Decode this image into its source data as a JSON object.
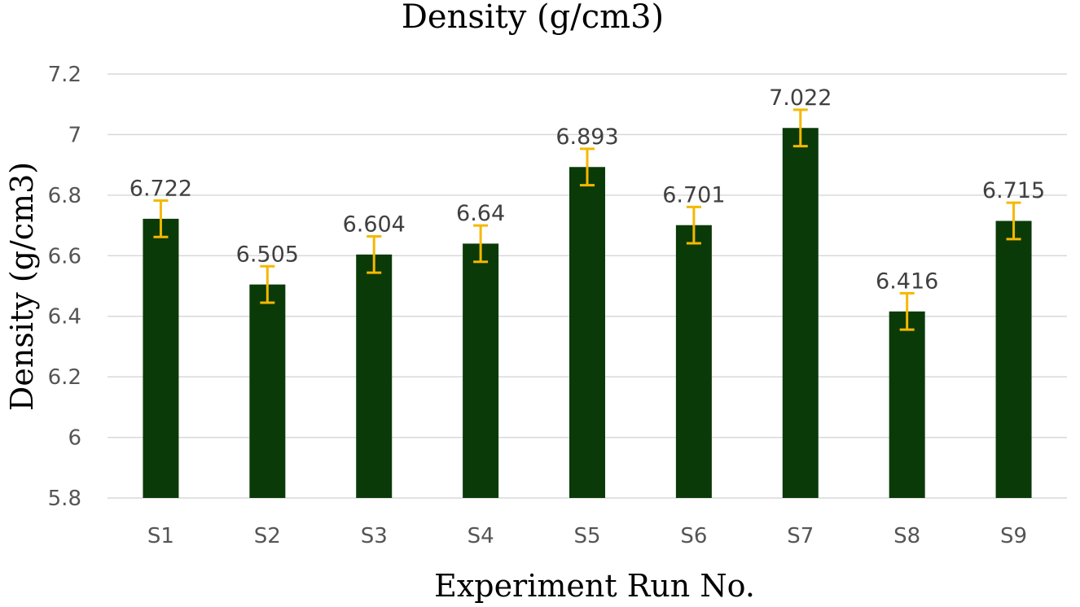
{
  "chart_data": {
    "type": "bar",
    "title": "Density (g/cm3)",
    "xlabel": "Experiment Run No.",
    "ylabel": "Density (g/cm3)",
    "categories": [
      "S1",
      "S2",
      "S3",
      "S4",
      "S5",
      "S6",
      "S7",
      "S8",
      "S9"
    ],
    "values": [
      6.722,
      6.505,
      6.604,
      6.64,
      6.893,
      6.701,
      7.022,
      6.416,
      6.715
    ],
    "data_labels": [
      "6.722",
      "6.505",
      "6.604",
      "6.64",
      "6.893",
      "6.701",
      "7.022",
      "6.416",
      "6.715"
    ],
    "error": [
      0.06,
      0.06,
      0.06,
      0.06,
      0.06,
      0.06,
      0.06,
      0.06,
      0.06
    ],
    "ylim": [
      5.8,
      7.2
    ],
    "yticks": [
      5.8,
      6,
      6.2,
      6.4,
      6.6,
      6.8,
      7,
      7.2
    ],
    "ytick_labels": [
      "5.8",
      "6",
      "6.2",
      "6.4",
      "6.6",
      "6.8",
      "7",
      "7.2"
    ],
    "grid": true,
    "legend": "none",
    "colors": {
      "bar": "#0b3a09",
      "error_bar": "#f5b800",
      "grid": "#d9d9d9"
    }
  }
}
